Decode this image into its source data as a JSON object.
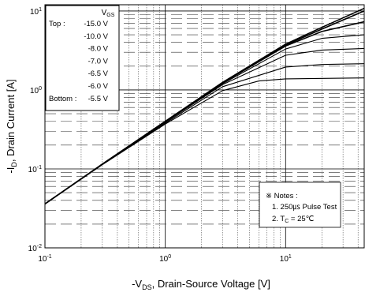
{
  "chart_data": {
    "type": "line",
    "title": "",
    "xlabel": {
      "prefix": "-V",
      "sub": "DS",
      "rest": ", Drain-Source Voltage [V]"
    },
    "ylabel": {
      "prefix": "-I",
      "sub": "D",
      "rest": ", Drain Current [A]"
    },
    "x_scale": "log",
    "y_scale": "log",
    "xlim": [
      0.1,
      45
    ],
    "ylim": [
      0.01,
      12
    ],
    "x_ticks": [
      {
        "value": 0.1,
        "base": "10",
        "exp": "-1"
      },
      {
        "value": 1,
        "base": "10",
        "exp": "0"
      },
      {
        "value": 10,
        "base": "10",
        "exp": "1"
      }
    ],
    "y_ticks": [
      {
        "value": 0.01,
        "base": "10",
        "exp": "-2"
      },
      {
        "value": 0.1,
        "base": "10",
        "exp": "-1"
      },
      {
        "value": 1,
        "base": "10",
        "exp": "0"
      },
      {
        "value": 10,
        "base": "10",
        "exp": "1"
      }
    ],
    "grid": true,
    "legend": {
      "placement": "top-left",
      "header": {
        "prefix": "V",
        "sub": "GS"
      },
      "top_label": "Top :",
      "bottom_label": "Bottom :",
      "entries": [
        "-15.0 V",
        "-10.0 V",
        "-8.0 V",
        "-7.0 V",
        "-6.5 V",
        "-6.0 V",
        "-5.5 V"
      ]
    },
    "notes": {
      "placement": "bottom-right",
      "title": "※ Notes :",
      "line1": "1. 250㎲ Pulse Test",
      "line2": {
        "prefix": "2. T",
        "sub": "C",
        "rest": " = 25℃"
      }
    },
    "series": [
      {
        "name": "-15.0 V",
        "x": [
          0.1,
          0.3,
          1,
          3,
          10,
          20,
          45
        ],
        "y": [
          0.036,
          0.115,
          0.4,
          1.25,
          3.8,
          6.2,
          10.8
        ]
      },
      {
        "name": "-10.0 V",
        "x": [
          0.1,
          0.3,
          1,
          3,
          10,
          20,
          45
        ],
        "y": [
          0.036,
          0.115,
          0.4,
          1.24,
          3.7,
          5.9,
          10.0
        ]
      },
      {
        "name": "-8.0 V",
        "x": [
          0.1,
          0.3,
          1,
          3,
          10,
          20,
          45
        ],
        "y": [
          0.036,
          0.115,
          0.4,
          1.23,
          3.6,
          5.5,
          7.3
        ]
      },
      {
        "name": "-7.0 V",
        "x": [
          0.1,
          0.3,
          1,
          3,
          10,
          20,
          45
        ],
        "y": [
          0.036,
          0.114,
          0.395,
          1.2,
          3.3,
          4.5,
          5.0
        ]
      },
      {
        "name": "-6.5 V",
        "x": [
          0.1,
          0.3,
          1,
          3,
          10,
          20,
          45
        ],
        "y": [
          0.036,
          0.114,
          0.39,
          1.17,
          2.75,
          3.2,
          3.35
        ]
      },
      {
        "name": "-6.0 V",
        "x": [
          0.1,
          0.3,
          1,
          3,
          10,
          20,
          45
        ],
        "y": [
          0.036,
          0.114,
          0.38,
          1.1,
          1.95,
          2.1,
          2.15
        ]
      },
      {
        "name": "-5.5 V",
        "x": [
          0.1,
          0.3,
          1,
          3,
          6,
          10,
          45
        ],
        "y": [
          0.036,
          0.113,
          0.37,
          0.98,
          1.3,
          1.38,
          1.42
        ]
      }
    ]
  }
}
